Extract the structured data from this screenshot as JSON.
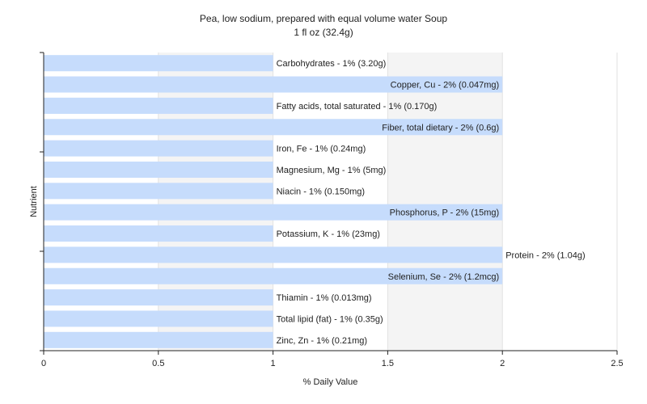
{
  "chart_data": {
    "type": "bar",
    "orientation": "horizontal",
    "title": "Pea, low sodium, prepared with equal volume water Soup",
    "subtitle": "1 fl oz (32.4g)",
    "xlabel": "% Daily Value",
    "ylabel": "Nutrient",
    "xlim": [
      0,
      2.5
    ],
    "xticks": [
      "0",
      "0.5",
      "1",
      "1.5",
      "2",
      "2.5"
    ],
    "grid": true,
    "bar_color": "#c6dcfc",
    "categories": [
      "Carbohydrates",
      "Copper, Cu",
      "Fatty acids, total saturated",
      "Fiber, total dietary",
      "Iron, Fe",
      "Magnesium, Mg",
      "Niacin",
      "Phosphorus, P",
      "Potassium, K",
      "Protein",
      "Selenium, Se",
      "Thiamin",
      "Total lipid (fat)",
      "Zinc, Zn"
    ],
    "values": [
      1,
      2,
      1,
      2,
      1,
      1,
      1,
      2,
      1,
      2,
      2,
      1,
      1,
      1
    ],
    "labels": [
      "Carbohydrates - 1% (3.20g)",
      "Copper, Cu - 2% (0.047mg)",
      "Fatty acids, total saturated - 1% (0.170g)",
      "Fiber, total dietary - 2% (0.6g)",
      "Iron, Fe - 1% (0.24mg)",
      "Magnesium, Mg - 1% (5mg)",
      "Niacin - 1% (0.150mg)",
      "Phosphorus, P - 2% (15mg)",
      "Potassium, K - 1% (23mg)",
      "Protein - 2% (1.04g)",
      "Selenium, Se - 2% (1.2mcg)",
      "Thiamin - 1% (0.013mg)",
      "Total lipid (fat) - 1% (0.35g)",
      "Zinc, Zn - 1% (0.21mg)"
    ]
  }
}
